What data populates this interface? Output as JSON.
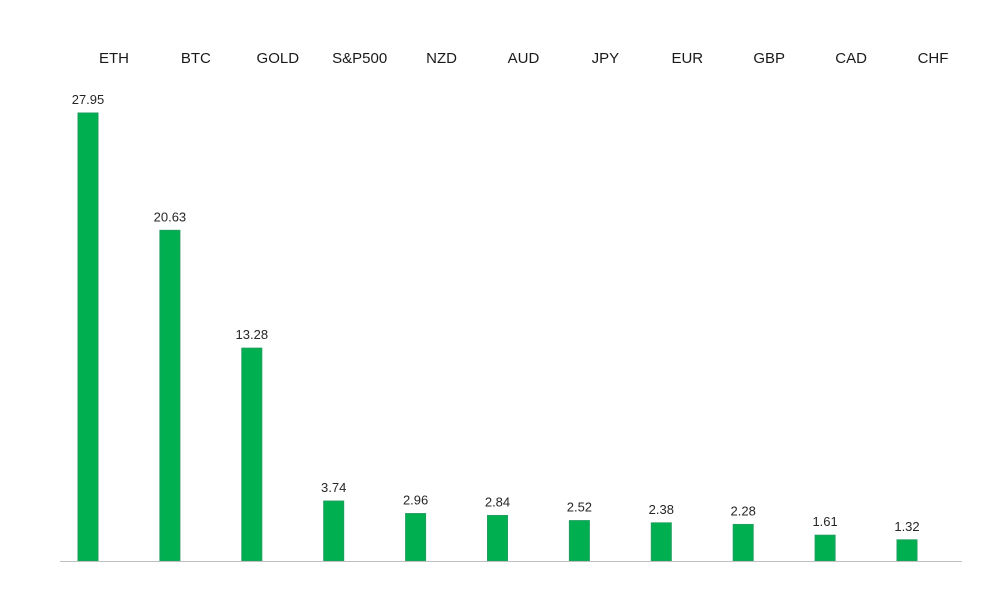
{
  "chart_data": {
    "type": "bar",
    "title": "",
    "xlabel": "",
    "ylabel": "",
    "categories": [
      "ETH",
      "BTC",
      "GOLD",
      "S&P500",
      "NZD",
      "AUD",
      "JPY",
      "EUR",
      "GBP",
      "CAD",
      "CHF"
    ],
    "values": [
      27.95,
      20.63,
      13.28,
      3.74,
      2.96,
      2.84,
      2.52,
      2.38,
      2.28,
      1.61,
      1.32
    ],
    "value_labels": [
      "27.95",
      "20.63",
      "13.28",
      "3.74",
      "2.96",
      "2.84",
      "2.52",
      "2.38",
      "2.28",
      "1.61",
      "1.32"
    ],
    "ylim": [
      0,
      28
    ],
    "grid": false,
    "category_labels_position": "top",
    "data_labels": true,
    "colors": {
      "bar_fill": "#00b050",
      "bar_edge": "#1f9f5f",
      "axis": "#bfbfbf",
      "text": "#1a1a1a"
    }
  }
}
